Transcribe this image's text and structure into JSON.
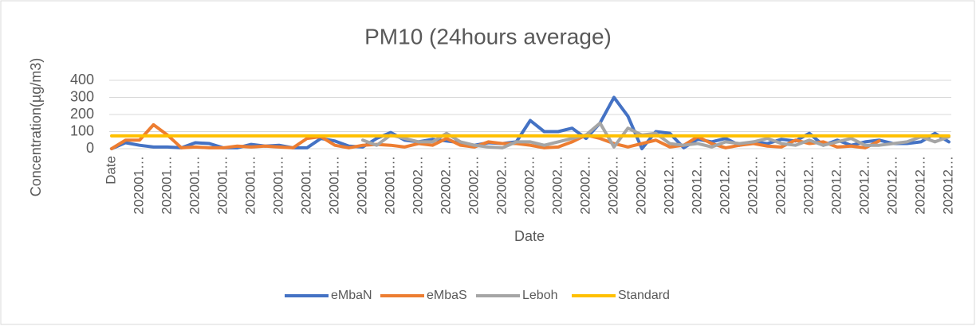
{
  "chart_data": {
    "type": "line",
    "title": "PM10 (24hours average)",
    "x_label": "Date",
    "y_label": "Concentration(µg/m3)",
    "categories": [
      "Date",
      null,
      "202001…",
      null,
      "202001…",
      null,
      "202001…",
      null,
      "202001…",
      null,
      "202001…",
      null,
      "202001…",
      null,
      "202001…",
      null,
      "202001…",
      null,
      "202001…",
      null,
      "202001…",
      null,
      "202002…",
      null,
      "202002…",
      null,
      "202002…",
      null,
      "202002…",
      null,
      "202002…",
      null,
      "202002…",
      null,
      "202002…",
      null,
      "202002…",
      null,
      "202002…",
      null,
      "202012…",
      null,
      "202012…",
      null,
      "202012…",
      null,
      "202012…",
      null,
      "202012…",
      null,
      "202012…",
      null,
      "202012…",
      null,
      "202012…",
      null,
      "202012…",
      null,
      "202012…",
      null,
      "202012…"
    ],
    "series": [
      {
        "name": "eMbaN",
        "color": "#4472c4",
        "values": [
          0,
          35,
          20,
          10,
          10,
          5,
          35,
          30,
          5,
          5,
          25,
          15,
          20,
          5,
          5,
          60,
          45,
          15,
          10,
          60,
          95,
          50,
          40,
          55,
          45,
          35,
          20,
          35,
          30,
          40,
          165,
          100,
          100,
          120,
          60,
          150,
          300,
          190,
          0,
          100,
          90,
          5,
          55,
          40,
          60,
          20,
          40,
          30,
          55,
          45,
          90,
          20,
          50,
          20,
          40,
          50,
          30,
          30,
          40,
          90,
          40
        ]
      },
      {
        "name": "eMbaS",
        "color": "#ed7d31",
        "values": [
          0,
          50,
          50,
          140,
          80,
          5,
          10,
          5,
          5,
          15,
          10,
          15,
          10,
          5,
          60,
          70,
          20,
          5,
          20,
          25,
          20,
          10,
          30,
          20,
          60,
          20,
          10,
          40,
          30,
          30,
          20,
          5,
          10,
          40,
          80,
          60,
          30,
          10,
          30,
          50,
          10,
          20,
          70,
          30,
          5,
          20,
          30,
          15,
          10,
          50,
          30,
          40,
          10,
          15,
          5,
          45,
          null,
          null,
          null,
          null,
          null
        ]
      },
      {
        "name": "Leboh",
        "color": "#a5a5a5",
        "values": [
          null,
          null,
          null,
          null,
          null,
          null,
          null,
          null,
          null,
          null,
          null,
          null,
          null,
          null,
          null,
          null,
          null,
          null,
          50,
          20,
          80,
          60,
          40,
          40,
          90,
          40,
          20,
          10,
          5,
          40,
          40,
          20,
          40,
          60,
          80,
          150,
          10,
          120,
          80,
          90,
          30,
          20,
          30,
          10,
          40,
          30,
          40,
          60,
          30,
          20,
          50,
          20,
          40,
          60,
          20,
          20,
          30,
          40,
          70,
          40,
          70
        ]
      },
      {
        "name": "Standard",
        "color": "#ffc000",
        "values": [
          75,
          75,
          75,
          75,
          75,
          75,
          75,
          75,
          75,
          75,
          75,
          75,
          75,
          75,
          75,
          75,
          75,
          75,
          75,
          75,
          75,
          75,
          75,
          75,
          75,
          75,
          75,
          75,
          75,
          75,
          75,
          75,
          75,
          75,
          75,
          75,
          75,
          75,
          75,
          75,
          75,
          75,
          75,
          75,
          75,
          75,
          75,
          75,
          75,
          75,
          75,
          75,
          75,
          75,
          75,
          75,
          75,
          75,
          75,
          75,
          75
        ]
      }
    ],
    "ylim": [
      0,
      400
    ],
    "yticks": [
      0,
      100,
      200,
      300,
      400
    ],
    "grid": true
  }
}
